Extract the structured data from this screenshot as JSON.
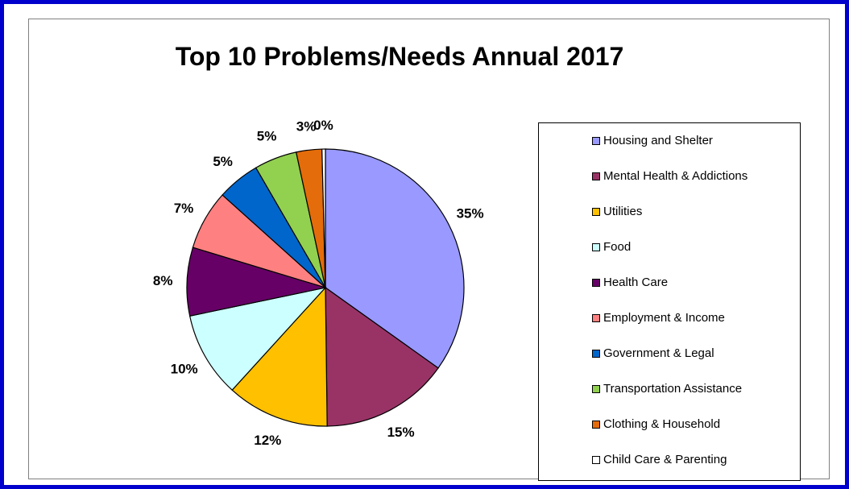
{
  "chart_data": {
    "type": "pie",
    "title": "Top 10 Problems/Needs Annual 2017",
    "categories": [
      "Housing and Shelter",
      "Mental Health & Addictions",
      "Utilities",
      "Food",
      "Health Care",
      "Employment & Income",
      "Government & Legal",
      "Transportation Assistance",
      "Clothing & Household",
      "Child Care & Parenting"
    ],
    "values": [
      35,
      15,
      12,
      10,
      8,
      7,
      5,
      5,
      3,
      0.4
    ],
    "labels": [
      "35%",
      "15%",
      "12%",
      "10%",
      "8%",
      "7%",
      "5%",
      "5%",
      "3%",
      "0%"
    ],
    "colors": [
      "#9999ff",
      "#993366",
      "#ffc000",
      "#ccffff",
      "#660066",
      "#ff8080",
      "#0066cc",
      "#92d050",
      "#e46c0a",
      "#ffffff"
    ],
    "legend_position": "right"
  }
}
